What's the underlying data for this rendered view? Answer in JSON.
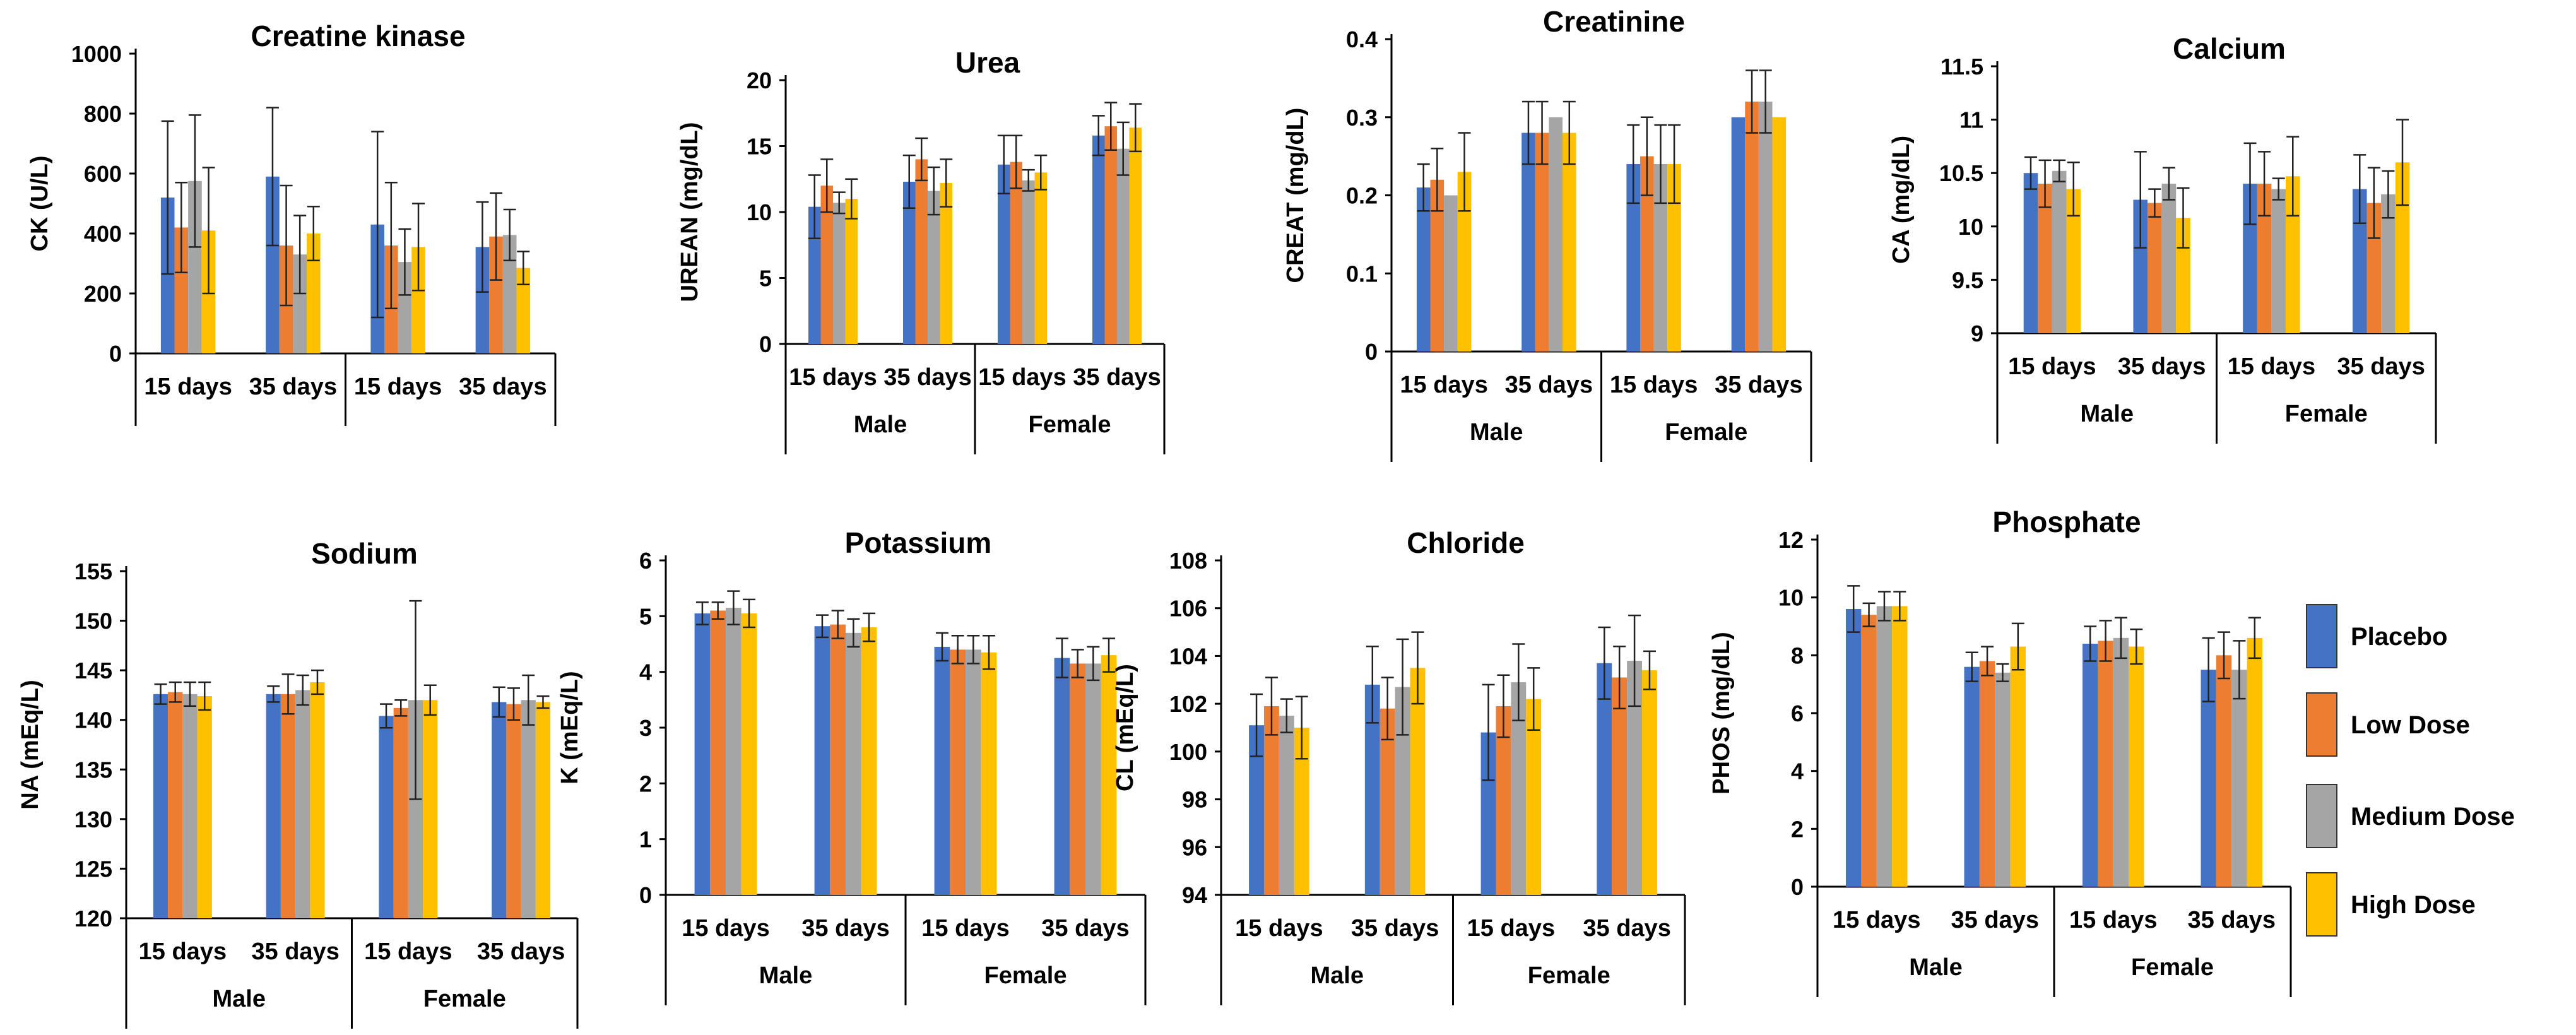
{
  "legend": {
    "entries": [
      {
        "name": "Placebo",
        "color": "#4472C4"
      },
      {
        "name": "Low Dose",
        "color": "#ED7D31"
      },
      {
        "name": "Medium Dose",
        "color": "#A5A5A5"
      },
      {
        "name": "High Dose",
        "color": "#FFC000"
      }
    ]
  },
  "chart_data": [
    {
      "type": "bar",
      "title": "Creatine kinase",
      "ylabel": "CK (U/L)",
      "ylim": [
        0,
        1000
      ],
      "ystep": 200,
      "yticks": [
        "0",
        "200",
        "400",
        "600",
        "800",
        "1000"
      ],
      "categories": [
        "15 days",
        "35 days",
        "15 days",
        "35 days"
      ],
      "groups": [],
      "series": [
        {
          "name": "Placebo",
          "values": [
            520,
            590,
            430,
            355
          ],
          "errors": [
            255,
            230,
            310,
            150
          ]
        },
        {
          "name": "Low Dose",
          "values": [
            420,
            360,
            360,
            390
          ],
          "errors": [
            150,
            200,
            210,
            145
          ]
        },
        {
          "name": "Medium Dose",
          "values": [
            575,
            330,
            305,
            395
          ],
          "errors": [
            220,
            130,
            110,
            85
          ]
        },
        {
          "name": "High Dose",
          "values": [
            410,
            400,
            355,
            285
          ],
          "errors": [
            210,
            90,
            145,
            55
          ]
        }
      ]
    },
    {
      "type": "bar",
      "title": "Urea",
      "ylabel": "UREAN (mg/dL)",
      "ylim": [
        0,
        20
      ],
      "ystep": 5,
      "yticks": [
        "0",
        "5",
        "10",
        "15",
        "20"
      ],
      "categories": [
        "15 days",
        "35 days",
        "15 days",
        "35 days"
      ],
      "groups": [
        "Male",
        "Female"
      ],
      "series": [
        {
          "name": "Placebo",
          "values": [
            10.4,
            12.3,
            13.6,
            15.8
          ],
          "errors": [
            2.4,
            2.0,
            2.2,
            1.5
          ]
        },
        {
          "name": "Low Dose",
          "values": [
            12.0,
            14.0,
            13.8,
            16.5
          ],
          "errors": [
            2.0,
            1.6,
            2.0,
            1.8
          ]
        },
        {
          "name": "Medium Dose",
          "values": [
            10.7,
            11.6,
            12.4,
            14.8
          ],
          "errors": [
            0.8,
            1.8,
            0.8,
            2.0
          ]
        },
        {
          "name": "High Dose",
          "values": [
            11.0,
            12.2,
            13.0,
            16.4
          ],
          "errors": [
            1.5,
            1.8,
            1.3,
            1.8
          ]
        }
      ]
    },
    {
      "type": "bar",
      "title": "Creatinine",
      "ylabel": "CREAT (mg/dL)",
      "ylim": [
        0,
        0.4
      ],
      "ystep": 0.1,
      "yticks": [
        "0",
        "0.1",
        "0.2",
        "0.3",
        "0.4"
      ],
      "categories": [
        "15 days",
        "35 days",
        "15 days",
        "35 days"
      ],
      "groups": [
        "Male",
        "Female"
      ],
      "series": [
        {
          "name": "Placebo",
          "values": [
            0.21,
            0.28,
            0.24,
            0.3
          ],
          "errors": [
            0.03,
            0.04,
            0.05,
            0.0
          ]
        },
        {
          "name": "Low Dose",
          "values": [
            0.22,
            0.28,
            0.25,
            0.32
          ],
          "errors": [
            0.04,
            0.04,
            0.05,
            0.04
          ]
        },
        {
          "name": "Medium Dose",
          "values": [
            0.2,
            0.3,
            0.24,
            0.32
          ],
          "errors": [
            0.0,
            0.0,
            0.05,
            0.04
          ]
        },
        {
          "name": "High Dose",
          "values": [
            0.23,
            0.28,
            0.24,
            0.3
          ],
          "errors": [
            0.05,
            0.04,
            0.05,
            0.0
          ]
        }
      ]
    },
    {
      "type": "bar",
      "title": "Calcium",
      "ylabel": "CA (mg/dL)",
      "ylim": [
        9,
        11.5
      ],
      "ystep": 0.5,
      "yticks": [
        "9",
        "9.5",
        "10",
        "10.5",
        "11",
        "11.5"
      ],
      "categories": [
        "15 days",
        "35 days",
        "15 days",
        "35 days"
      ],
      "groups": [
        "Male",
        "Female"
      ],
      "series": [
        {
          "name": "Placebo",
          "values": [
            10.5,
            10.25,
            10.4,
            10.35
          ],
          "errors": [
            0.15,
            0.45,
            0.38,
            0.32
          ]
        },
        {
          "name": "Low Dose",
          "values": [
            10.4,
            10.22,
            10.4,
            10.22
          ],
          "errors": [
            0.22,
            0.13,
            0.3,
            0.33
          ]
        },
        {
          "name": "Medium Dose",
          "values": [
            10.52,
            10.4,
            10.35,
            10.3
          ],
          "errors": [
            0.1,
            0.15,
            0.1,
            0.22
          ]
        },
        {
          "name": "High Dose",
          "values": [
            10.35,
            10.08,
            10.47,
            10.6
          ],
          "errors": [
            0.25,
            0.28,
            0.37,
            0.4
          ]
        }
      ]
    },
    {
      "type": "bar",
      "title": "Sodium",
      "ylabel": "NA (mEq/L)",
      "ylim": [
        120,
        155
      ],
      "ystep": 5,
      "yticks": [
        "120",
        "125",
        "130",
        "135",
        "140",
        "145",
        "150",
        "155"
      ],
      "categories": [
        "15 days",
        "35 days",
        "15 days",
        "35 days"
      ],
      "groups": [
        "Male",
        "Female"
      ],
      "series": [
        {
          "name": "Placebo",
          "values": [
            142.6,
            142.6,
            140.4,
            141.8
          ],
          "errors": [
            1.0,
            0.8,
            1.2,
            1.5
          ]
        },
        {
          "name": "Low Dose",
          "values": [
            142.8,
            142.6,
            141.2,
            141.6
          ],
          "errors": [
            1.0,
            2.0,
            0.8,
            1.6
          ]
        },
        {
          "name": "Medium Dose",
          "values": [
            142.6,
            143.0,
            142.0,
            142.0
          ],
          "errors": [
            1.2,
            1.5,
            10.0,
            2.5
          ]
        },
        {
          "name": "High Dose",
          "values": [
            142.4,
            143.8,
            142.0,
            141.8
          ],
          "errors": [
            1.4,
            1.2,
            1.5,
            0.6
          ]
        }
      ]
    },
    {
      "type": "bar",
      "title": "Potassium",
      "ylabel": "K (mEq/L)",
      "ylim": [
        0,
        6
      ],
      "ystep": 1,
      "yticks": [
        "0",
        "1",
        "2",
        "3",
        "4",
        "5",
        "6"
      ],
      "categories": [
        "15 days",
        "35 days",
        "15 days",
        "35 days"
      ],
      "groups": [
        "Male",
        "Female"
      ],
      "series": [
        {
          "name": "Placebo",
          "values": [
            5.05,
            4.82,
            4.45,
            4.25
          ],
          "errors": [
            0.2,
            0.2,
            0.25,
            0.35
          ]
        },
        {
          "name": "Low Dose",
          "values": [
            5.1,
            4.85,
            4.4,
            4.15
          ],
          "errors": [
            0.15,
            0.25,
            0.25,
            0.25
          ]
        },
        {
          "name": "Medium Dose",
          "values": [
            5.15,
            4.7,
            4.4,
            4.15
          ],
          "errors": [
            0.3,
            0.25,
            0.25,
            0.3
          ]
        },
        {
          "name": "High Dose",
          "values": [
            5.05,
            4.8,
            4.35,
            4.3
          ],
          "errors": [
            0.25,
            0.25,
            0.3,
            0.3
          ]
        }
      ]
    },
    {
      "type": "bar",
      "title": "Chloride",
      "ylabel": "CL (mEq/L)",
      "ylim": [
        94,
        108
      ],
      "ystep": 2,
      "yticks": [
        "94",
        "96",
        "98",
        "100",
        "102",
        "104",
        "106",
        "108"
      ],
      "categories": [
        "15 days",
        "35 days",
        "15 days",
        "35 days"
      ],
      "groups": [
        "Male",
        "Female"
      ],
      "series": [
        {
          "name": "Placebo",
          "values": [
            101.1,
            102.8,
            100.8,
            103.7
          ],
          "errors": [
            1.3,
            1.6,
            2.0,
            1.5
          ]
        },
        {
          "name": "Low Dose",
          "values": [
            101.9,
            101.8,
            101.9,
            103.1
          ],
          "errors": [
            1.2,
            1.3,
            1.3,
            1.3
          ]
        },
        {
          "name": "Medium Dose",
          "values": [
            101.5,
            102.7,
            102.9,
            103.8
          ],
          "errors": [
            0.7,
            2.0,
            1.6,
            1.9
          ]
        },
        {
          "name": "High Dose",
          "values": [
            101.0,
            103.5,
            102.2,
            103.4
          ],
          "errors": [
            1.3,
            1.5,
            1.3,
            0.8
          ]
        }
      ]
    },
    {
      "type": "bar",
      "title": "Phosphate",
      "ylabel": "PHOS (mg/dL)",
      "ylim": [
        0,
        12
      ],
      "ystep": 2,
      "yticks": [
        "0",
        "2",
        "4",
        "6",
        "8",
        "10",
        "12"
      ],
      "categories": [
        "15 days",
        "35 days",
        "15 days",
        "35 days"
      ],
      "groups": [
        "Male",
        "Female"
      ],
      "series": [
        {
          "name": "Placebo",
          "values": [
            9.6,
            7.6,
            8.4,
            7.5
          ],
          "errors": [
            0.8,
            0.5,
            0.6,
            1.1
          ]
        },
        {
          "name": "Low Dose",
          "values": [
            9.4,
            7.8,
            8.5,
            8.0
          ],
          "errors": [
            0.4,
            0.5,
            0.7,
            0.8
          ]
        },
        {
          "name": "Medium Dose",
          "values": [
            9.7,
            7.4,
            8.6,
            7.5
          ],
          "errors": [
            0.5,
            0.3,
            0.7,
            1.0
          ]
        },
        {
          "name": "High Dose",
          "values": [
            9.7,
            8.3,
            8.3,
            8.6
          ],
          "errors": [
            0.5,
            0.8,
            0.6,
            0.7
          ]
        }
      ]
    }
  ]
}
